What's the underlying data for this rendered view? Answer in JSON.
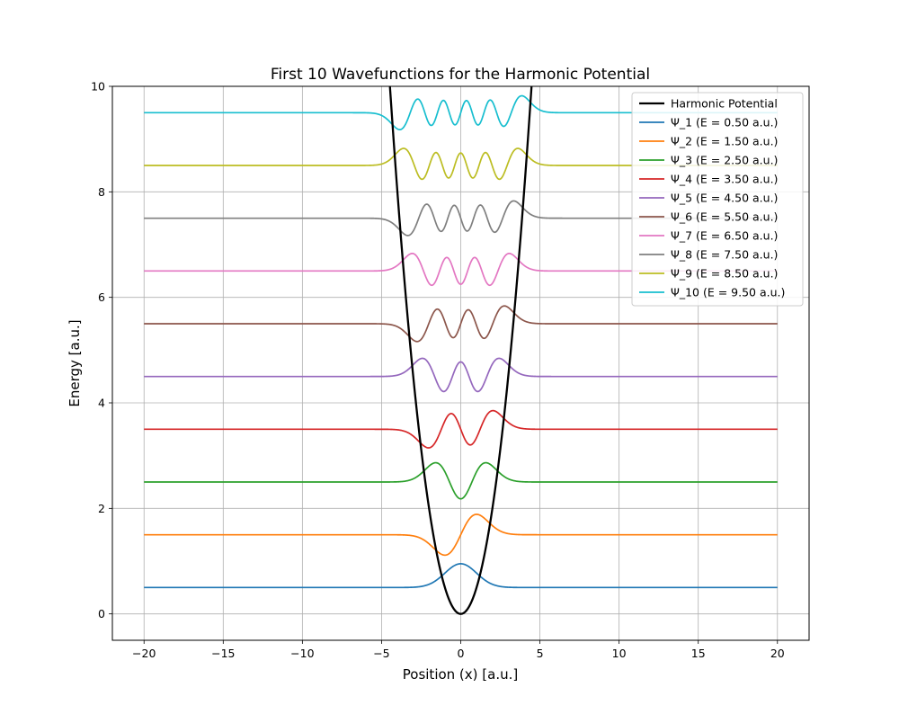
{
  "chart_data": {
    "type": "line",
    "title": "First 10 Wavefunctions for the Harmonic Potential",
    "xlabel": "Position (x) [a.u.]",
    "ylabel": "Energy [a.u.]",
    "xlim": [
      -22,
      22
    ],
    "ylim": [
      -0.5,
      10
    ],
    "x_ticks": [
      -20,
      -15,
      -10,
      -5,
      0,
      5,
      10,
      15,
      20
    ],
    "x_tick_labels": [
      "−20",
      "−15",
      "−10",
      "−5",
      "0",
      "5",
      "10",
      "15",
      "20"
    ],
    "y_ticks": [
      0,
      2,
      4,
      6,
      8,
      10
    ],
    "y_tick_labels": [
      "0",
      "2",
      "4",
      "6",
      "8",
      "10"
    ],
    "grid": true,
    "legend_position": "top-right",
    "x_range": [
      -20,
      20
    ],
    "potential": {
      "name": "Harmonic Potential",
      "formula": "V(x) = 0.5 x^2",
      "color": "#000000"
    },
    "wavefunction_scale": 0.6,
    "series": [
      {
        "name": "Ψ_1 (E = 0.50 a.u.)",
        "n": 0,
        "energy": 0.5,
        "color": "#1f77b4"
      },
      {
        "name": "Ψ_2 (E = 1.50 a.u.)",
        "n": 1,
        "energy": 1.5,
        "color": "#ff7f0e"
      },
      {
        "name": "Ψ_3 (E = 2.50 a.u.)",
        "n": 2,
        "energy": 2.5,
        "color": "#2ca02c"
      },
      {
        "name": "Ψ_4 (E = 3.50 a.u.)",
        "n": 3,
        "energy": 3.5,
        "color": "#d62728"
      },
      {
        "name": "Ψ_5 (E = 4.50 a.u.)",
        "n": 4,
        "energy": 4.5,
        "color": "#9467bd"
      },
      {
        "name": "Ψ_6 (E = 5.50 a.u.)",
        "n": 5,
        "energy": 5.5,
        "color": "#8c564b"
      },
      {
        "name": "Ψ_7 (E = 6.50 a.u.)",
        "n": 6,
        "energy": 6.5,
        "color": "#e377c2"
      },
      {
        "name": "Ψ_8 (E = 7.50 a.u.)",
        "n": 7,
        "energy": 7.5,
        "color": "#7f7f7f"
      },
      {
        "name": "Ψ_9 (E = 8.50 a.u.)",
        "n": 8,
        "energy": 8.5,
        "color": "#bcbd22"
      },
      {
        "name": "Ψ_10 (E = 9.50 a.u.)",
        "n": 9,
        "energy": 9.5,
        "color": "#17becf"
      }
    ]
  }
}
